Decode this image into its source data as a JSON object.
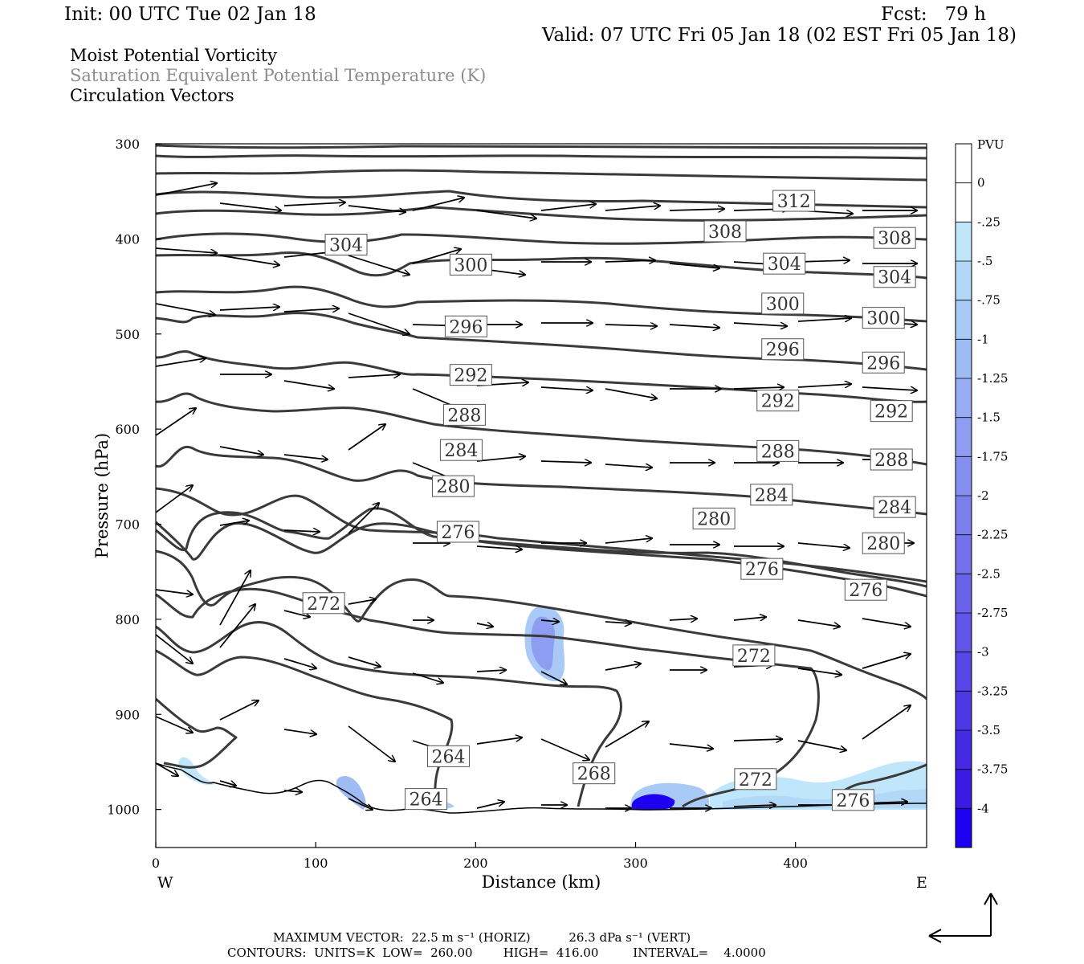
{
  "header": {
    "init": "Init: 00 UTC Tue 02 Jan 18",
    "fcst": "Fcst:   79 h",
    "valid": "Valid: 07 UTC Fri 05 Jan 18 (02 EST Fri 05 Jan 18)",
    "field1": "Moist Potential Vorticity",
    "field2": "Saturation Equivalent Potential Temperature (K)",
    "field3": "Circulation Vectors",
    "field2_color": "#8c8c8c"
  },
  "footer": {
    "line1": "MAXIMUM VECTOR:  22.5 m s⁻¹ (HORIZ)          26.3 dPa s⁻¹ (VERT)",
    "line2": "CONTOURS:  UNITS=K  LOW=  260.00        HIGH=  416.00         INTERVAL=    4.0000"
  },
  "chart_data": {
    "type": "cross-section",
    "xlabel": "Distance (km)",
    "ylabel": "Pressure (hPa)",
    "xlim": [
      0,
      482
    ],
    "ylim": [
      1040,
      300
    ],
    "x_ticks": [
      0,
      100,
      200,
      300,
      400
    ],
    "y_ticks": [
      300,
      400,
      500,
      600,
      700,
      800,
      900,
      1000
    ],
    "x_left_label": "W",
    "x_right_label": "E",
    "colorbar": {
      "unit": "PVU",
      "labels": [
        "0",
        "-.25",
        "-.5",
        "-.75",
        "-1",
        "-1.25",
        "-1.5",
        "-1.75",
        "-2",
        "-2.25",
        "-2.5",
        "-2.75",
        "-3",
        "-3.25",
        "-3.5",
        "-3.75",
        "-4"
      ],
      "colors": [
        "#ffffff",
        "#ffffff",
        "#bfe6fb",
        "#b2d8f8",
        "#a9caf6",
        "#9fbbf4",
        "#97acf3",
        "#8e9df1",
        "#858ff0",
        "#7c80ee",
        "#7372ec",
        "#6a63ea",
        "#6155e9",
        "#5846e8",
        "#4f37e6",
        "#4629e4",
        "#3d1ae3",
        "#1e00f0"
      ]
    },
    "contour_labels": [
      {
        "text": "312",
        "x": 399,
        "p": 360
      },
      {
        "text": "308",
        "x": 356,
        "p": 392
      },
      {
        "text": "308",
        "x": 462,
        "p": 399
      },
      {
        "text": "304",
        "x": 119,
        "p": 406
      },
      {
        "text": "304",
        "x": 393,
        "p": 426
      },
      {
        "text": "304",
        "x": 462,
        "p": 440
      },
      {
        "text": "300",
        "x": 197,
        "p": 427
      },
      {
        "text": "300",
        "x": 392,
        "p": 468
      },
      {
        "text": "300",
        "x": 455,
        "p": 483
      },
      {
        "text": "296",
        "x": 194,
        "p": 492
      },
      {
        "text": "296",
        "x": 392,
        "p": 516
      },
      {
        "text": "296",
        "x": 455,
        "p": 530
      },
      {
        "text": "292",
        "x": 197,
        "p": 543
      },
      {
        "text": "292",
        "x": 389,
        "p": 570
      },
      {
        "text": "292",
        "x": 460,
        "p": 581
      },
      {
        "text": "288",
        "x": 193,
        "p": 585
      },
      {
        "text": "288",
        "x": 389,
        "p": 623
      },
      {
        "text": "288",
        "x": 460,
        "p": 632
      },
      {
        "text": "284",
        "x": 191,
        "p": 622
      },
      {
        "text": "284",
        "x": 385,
        "p": 669
      },
      {
        "text": "284",
        "x": 462,
        "p": 682
      },
      {
        "text": "280",
        "x": 186,
        "p": 660
      },
      {
        "text": "280",
        "x": 349,
        "p": 694
      },
      {
        "text": "280",
        "x": 455,
        "p": 720
      },
      {
        "text": "276",
        "x": 189,
        "p": 708
      },
      {
        "text": "276",
        "x": 379,
        "p": 747
      },
      {
        "text": "276",
        "x": 444,
        "p": 769
      },
      {
        "text": "272",
        "x": 105,
        "p": 783
      },
      {
        "text": "272",
        "x": 374,
        "p": 838
      },
      {
        "text": "272",
        "x": 375,
        "p": 968
      },
      {
        "text": "268",
        "x": 274,
        "p": 962
      },
      {
        "text": "264",
        "x": 183,
        "p": 944
      },
      {
        "text": "264",
        "x": 169,
        "p": 989
      },
      {
        "text": "276",
        "x": 436,
        "p": 990
      }
    ]
  }
}
